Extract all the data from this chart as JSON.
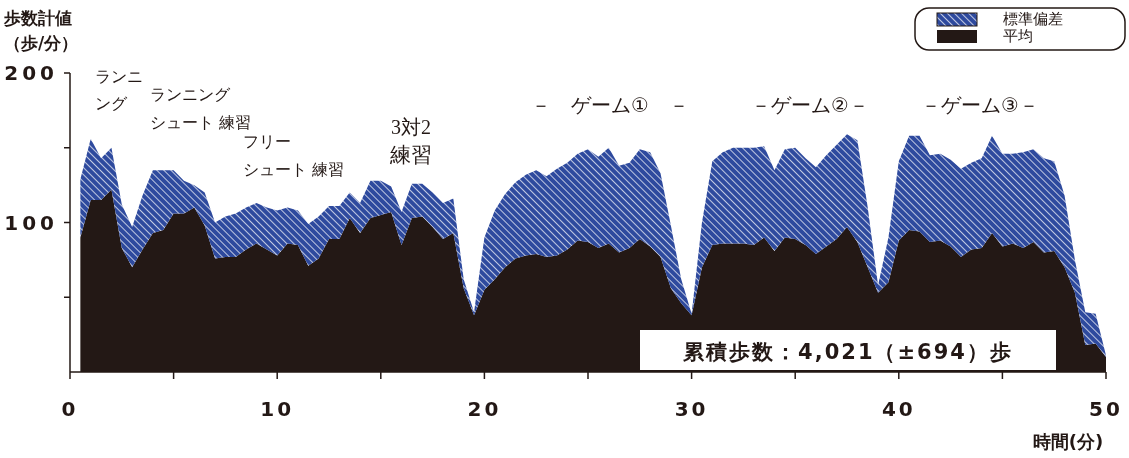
{
  "chart_data": {
    "type": "area",
    "stacked": true,
    "ylabel": "歩数計値（歩/分）",
    "xlabel": "時間(分)",
    "x": [
      0.5,
      1,
      1.5,
      2,
      2.5,
      3,
      3.5,
      4,
      4.5,
      5,
      5.5,
      6,
      6.5,
      7,
      7.5,
      8,
      8.5,
      9,
      9.5,
      10,
      10.5,
      11,
      11.5,
      12,
      12.5,
      13,
      13.5,
      14,
      14.5,
      15,
      15.5,
      16,
      16.5,
      17,
      17.5,
      18,
      18.5,
      19,
      19.5,
      20,
      20.5,
      21,
      21.5,
      22,
      22.5,
      23,
      23.5,
      24,
      24.5,
      25,
      25.5,
      26,
      26.5,
      27,
      27.5,
      28,
      28.5,
      29,
      29.5,
      30,
      30.5,
      31,
      31.5,
      32,
      32.5,
      33,
      33.5,
      34,
      34.5,
      35,
      35.5,
      36,
      36.5,
      37,
      37.5,
      38,
      38.5,
      39,
      39.5,
      40,
      40.5,
      41,
      41.5,
      42,
      42.5,
      43,
      43.5,
      44,
      44.5,
      45,
      45.5,
      46,
      46.5,
      47,
      47.5,
      48,
      48.5,
      49,
      49.5,
      50
    ],
    "series": [
      {
        "name": "平均",
        "color": "#231815",
        "values": [
          90,
          115,
          115,
          122,
          83,
          70,
          82,
          93,
          95,
          106,
          106,
          110,
          98,
          76,
          77,
          77,
          82,
          86,
          82,
          78,
          86,
          85,
          71,
          76,
          89,
          89,
          103,
          93,
          103,
          105,
          107,
          85,
          103,
          104,
          97,
          89,
          93,
          56,
          38,
          55,
          62,
          70,
          76,
          78,
          79,
          77,
          78,
          82,
          88,
          87,
          83,
          86,
          80,
          83,
          89,
          84,
          77,
          56,
          46,
          38,
          70,
          85,
          86,
          86,
          86,
          85,
          90,
          81,
          90,
          89,
          85,
          79,
          84,
          89,
          97,
          87,
          70,
          53,
          60,
          88,
          95,
          94,
          87,
          88,
          84,
          77,
          82,
          83,
          93,
          84,
          86,
          83,
          87,
          80,
          81,
          70,
          53,
          18,
          19,
          10
        ]
      },
      {
        "name": "標準偏差",
        "color": "#2e4a9e",
        "values": [
          39,
          41,
          28,
          28,
          29,
          27,
          36,
          42,
          40,
          29,
          22,
          15,
          22,
          24,
          27,
          29,
          28,
          27,
          28,
          30,
          24,
          23,
          28,
          28,
          22,
          22,
          17,
          20,
          25,
          23,
          17,
          22,
          23,
          22,
          23,
          24,
          23,
          6,
          2,
          35,
          46,
          49,
          51,
          54,
          56,
          54,
          58,
          58,
          58,
          62,
          61,
          64,
          58,
          57,
          60,
          63,
          56,
          42,
          16,
          1,
          30,
          56,
          61,
          64,
          64,
          65,
          61,
          54,
          59,
          61,
          58,
          58,
          61,
          63,
          62,
          68,
          40,
          5,
          30,
          53,
          63,
          64,
          58,
          58,
          58,
          59,
          58,
          60,
          65,
          62,
          60,
          64,
          62,
          63,
          60,
          48,
          22,
          22,
          20,
          1
        ]
      }
    ],
    "xlim": [
      0,
      50
    ],
    "xticks": [
      0,
      {
        "value": 5,
        "label": null
      },
      10,
      {
        "value": 15,
        "label": null
      },
      20,
      {
        "value": 25,
        "label": null
      },
      30,
      {
        "value": 35,
        "label": null
      },
      40,
      {
        "value": 45,
        "label": null
      },
      50
    ],
    "ylim": [
      0,
      200
    ],
    "yticks": [
      {
        "value": 50,
        "label": null
      },
      100,
      {
        "value": 150,
        "label": null
      },
      200
    ],
    "legend": "top right",
    "grid": false,
    "annotations": [
      "ランニ",
      "ング",
      "ランニング",
      "シュート 練習",
      "フリー",
      "シュート 練習",
      "3対2",
      "練習",
      "－　ゲーム①　－",
      "－ゲーム②－",
      "－ゲーム③－",
      "累積歩数：4,021（±694）歩"
    ]
  }
}
